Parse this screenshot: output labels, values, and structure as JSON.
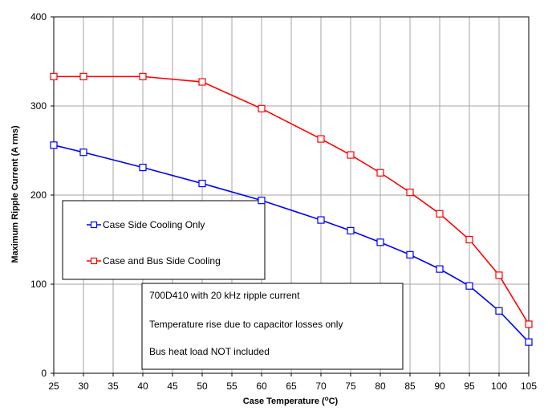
{
  "chart_data": {
    "type": "line",
    "x": [
      25,
      30,
      40,
      50,
      60,
      70,
      75,
      80,
      85,
      90,
      95,
      100,
      105
    ],
    "x_ticks": [
      25,
      30,
      35,
      40,
      45,
      50,
      55,
      60,
      65,
      70,
      75,
      80,
      85,
      90,
      95,
      100,
      105
    ],
    "y_ticks": [
      0,
      100,
      200,
      300,
      400
    ],
    "xlim": [
      25,
      105
    ],
    "ylim": [
      0,
      400
    ],
    "grid": true,
    "xlabel_main": "Case Temperature (",
    "xlabel_sup": "o",
    "xlabel_end": "C)",
    "ylabel": "Maximum Ripple Current (A rms)",
    "series": [
      {
        "name": "Case Side Cooling Only",
        "color": "#0000ff",
        "values": [
          256,
          248,
          231,
          213,
          194,
          172,
          160,
          147,
          133,
          117,
          98,
          70,
          35
        ]
      },
      {
        "name": "Case and Bus Side Cooling",
        "color": "#ff0000",
        "values": [
          333,
          333,
          333,
          327,
          297,
          263,
          245,
          225,
          203,
          179,
          150,
          110,
          55
        ]
      }
    ],
    "annotations": [
      "700D410 with 20 kHz ripple current",
      "Temperature rise due to capacitor losses only",
      "Bus heat load NOT included"
    ]
  }
}
